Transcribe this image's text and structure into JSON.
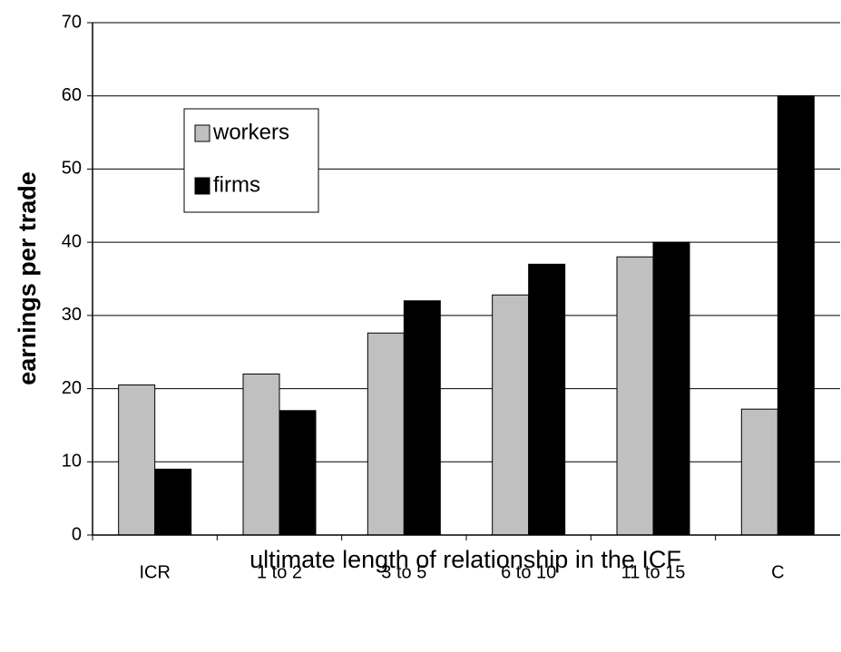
{
  "chart_data": {
    "type": "bar",
    "categories": [
      "ICR",
      "1 to 2",
      "3 to 5",
      "6 to 10",
      "11 to 15",
      "C"
    ],
    "series": [
      {
        "name": "workers",
        "color": "#c0c0c0",
        "values": [
          20.5,
          22,
          27.6,
          32.8,
          38,
          17.2
        ]
      },
      {
        "name": "firms",
        "color": "#000000",
        "values": [
          9,
          17,
          32,
          37,
          40,
          60
        ]
      }
    ],
    "xlabel": "ultimate length of relationship in the ICF",
    "ylabel": "earnings per trade",
    "ylim": [
      0,
      70
    ],
    "yticks": [
      0,
      10,
      20,
      30,
      40,
      50,
      60,
      70
    ],
    "grid": true,
    "legend": "upper left"
  }
}
